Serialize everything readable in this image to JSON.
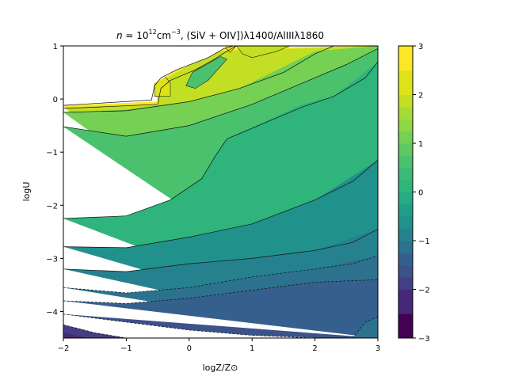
{
  "chart_data": {
    "type": "contour",
    "title": "n = 10^12 cm^-3, (SiV + OIV])λ1400/AlIIIλ1860",
    "title_parts": {
      "n": "n",
      "eq": " = 10",
      "exp": "12",
      "unit": "cm",
      "unit_exp": "−3",
      "rest": ", (SiV + OIV])λ1400/AlIIIλ1860"
    },
    "xlabel": "logZ/Z⊙",
    "ylabel": "logU",
    "xlim": [
      -2,
      3
    ],
    "ylim": [
      -4.5,
      1
    ],
    "xticks": [
      -2,
      -1,
      0,
      1,
      2,
      3
    ],
    "yticks": [
      -4,
      -3,
      -2,
      -1,
      0,
      1
    ],
    "xtick_labels": [
      "−2",
      "−1",
      "0",
      "1",
      "2",
      "3"
    ],
    "ytick_labels": [
      "−4",
      "−3",
      "−2",
      "−1",
      "0",
      "1"
    ],
    "colorbar": {
      "min": -3,
      "max": 3,
      "ticks": [
        -3,
        -2,
        -1,
        0,
        1,
        2,
        3
      ],
      "tick_labels": [
        "−3",
        "−2",
        "−1",
        "0",
        "1",
        "2",
        "3"
      ],
      "levels": [
        -3,
        -2.5,
        -2,
        -1.75,
        -1.5,
        -1.25,
        -1,
        -0.75,
        -0.5,
        -0.25,
        0,
        0.25,
        0.5,
        0.75,
        1,
        1.25,
        1.5,
        1.75,
        2,
        2.5,
        3
      ],
      "colors": [
        "#440154",
        "#472878",
        "#433e85",
        "#3b528b",
        "#35608d",
        "#2c728e",
        "#26818e",
        "#21918c",
        "#1f9e89",
        "#25ac82",
        "#2fb47c",
        "#3bbb75",
        "#4ac16d",
        "#5ec962",
        "#75d054",
        "#8fd744",
        "#a5db36",
        "#c2df23",
        "#dde318",
        "#fde725"
      ]
    },
    "grid": "off",
    "regions": [
      {
        "fill": "#fde725",
        "points": [
          [
            -2,
            -0.12
          ],
          [
            -0.5,
            -0.05
          ],
          [
            -0.6,
            0.4
          ],
          [
            0.3,
            0.95
          ],
          [
            3,
            1
          ],
          [
            3,
            -4.5
          ]
        ],
        "note": "top"
      },
      {
        "fill": "#c2df23",
        "points": [
          [
            -2,
            -0.15
          ],
          [
            -0.5,
            -0.1
          ],
          [
            -0.5,
            0.3
          ],
          [
            0.4,
            0.9
          ],
          [
            3,
            1
          ],
          [
            3,
            -4.5
          ]
        ]
      },
      {
        "fill": "#75d054",
        "points": [
          [
            -2,
            -0.25
          ],
          [
            -1,
            -0.2
          ],
          [
            0,
            -0.05
          ],
          [
            0.8,
            0.2
          ],
          [
            2,
            0.9
          ],
          [
            3,
            1
          ],
          [
            3,
            -4.5
          ]
        ]
      },
      {
        "fill": "#4ac16d",
        "points": [
          [
            -2,
            -0.52
          ],
          [
            -1,
            -0.7
          ],
          [
            0,
            -0.5
          ],
          [
            1,
            -0.1
          ],
          [
            2.5,
            0.65
          ],
          [
            3,
            0.95
          ],
          [
            3,
            -4.5
          ]
        ]
      },
      {
        "fill": "#2fb47c",
        "points": [
          [
            -2,
            -2.25
          ],
          [
            -1,
            -2.2
          ],
          [
            -0.3,
            -1.9
          ],
          [
            0.2,
            -1.5
          ],
          [
            0.4,
            -1.1
          ],
          [
            0.6,
            -0.75
          ],
          [
            1.8,
            -0.1
          ],
          [
            2.3,
            0.05
          ],
          [
            3,
            0.7
          ],
          [
            3,
            -4.5
          ]
        ]
      },
      {
        "fill": "#21918c",
        "points": [
          [
            -2,
            -2.78
          ],
          [
            -1,
            -2.8
          ],
          [
            0,
            -2.6
          ],
          [
            1,
            -2.35
          ],
          [
            2,
            -1.9
          ],
          [
            3,
            -1.15
          ],
          [
            3,
            -4.5
          ]
        ]
      },
      {
        "fill": "#26818e",
        "points": [
          [
            -2,
            -3.2
          ],
          [
            -1,
            -3.25
          ],
          [
            0,
            -3.1
          ],
          [
            1,
            -3.0
          ],
          [
            2,
            -2.85
          ],
          [
            3,
            -2.45
          ],
          [
            3,
            -4.5
          ]
        ]
      },
      {
        "fill": "#2c728e",
        "points": [
          [
            -2,
            -3.55
          ],
          [
            -1,
            -3.65
          ],
          [
            0,
            -3.55
          ],
          [
            1,
            -3.35
          ],
          [
            2,
            -3.2
          ],
          [
            3,
            -2.95
          ],
          [
            3,
            -4.5
          ]
        ]
      },
      {
        "fill": "#35608d",
        "points": [
          [
            -2,
            -3.8
          ],
          [
            -1,
            -3.85
          ],
          [
            0,
            -3.75
          ],
          [
            1,
            -3.6
          ],
          [
            2,
            -3.45
          ],
          [
            3,
            -3.4
          ],
          [
            3,
            -4.5
          ]
        ]
      },
      {
        "fill": "#3b528b",
        "points": [
          [
            -2,
            -4.05
          ],
          [
            -1,
            -4.2
          ],
          [
            0,
            -4.35
          ],
          [
            1,
            -4.45
          ],
          [
            2.2,
            -4.5
          ],
          [
            3,
            -4.5
          ]
        ]
      },
      {
        "fill": "#433e85",
        "points": [
          [
            -2,
            -4.25
          ],
          [
            -1.5,
            -4.4
          ],
          [
            -1,
            -4.5
          ],
          [
            -2,
            -4.5
          ]
        ]
      },
      {
        "fill": "#472878",
        "points": [
          [
            -2,
            -4.4
          ],
          [
            -1.6,
            -4.5
          ],
          [
            -2,
            -4.5
          ]
        ]
      },
      {
        "fill": "#2c728e",
        "points": [
          [
            2.6,
            -4.5
          ],
          [
            2.8,
            -4.2
          ],
          [
            3,
            -4.1
          ],
          [
            3,
            -4.5
          ]
        ]
      }
    ],
    "contour_lines": [
      {
        "style": "solid",
        "points": [
          [
            -2,
            -0.12
          ],
          [
            -0.6,
            -0.02
          ],
          [
            -0.55,
            0.25
          ],
          [
            -0.45,
            0.4
          ],
          [
            -0.2,
            0.55
          ],
          [
            0.3,
            0.78
          ],
          [
            0.55,
            0.95
          ],
          [
            0.7,
            1
          ]
        ]
      },
      {
        "style": "solid",
        "points": [
          [
            -2,
            -0.18
          ],
          [
            -0.5,
            -0.1
          ],
          [
            -0.45,
            0.2
          ],
          [
            -0.3,
            0.35
          ],
          [
            0.1,
            0.55
          ],
          [
            0.4,
            0.75
          ],
          [
            0.6,
            0.9
          ],
          [
            0.75,
            1
          ]
        ]
      },
      {
        "style": "solid",
        "points": [
          [
            -2,
            -0.25
          ],
          [
            -1,
            -0.22
          ],
          [
            0,
            -0.05
          ],
          [
            0.8,
            0.2
          ],
          [
            1.5,
            0.5
          ],
          [
            2,
            0.85
          ],
          [
            2.3,
            1
          ]
        ]
      },
      {
        "style": "solid",
        "points": [
          [
            -2,
            -0.52
          ],
          [
            -1,
            -0.7
          ],
          [
            0,
            -0.5
          ],
          [
            1,
            -0.1
          ],
          [
            2,
            0.4
          ],
          [
            2.5,
            0.65
          ],
          [
            3,
            0.95
          ]
        ]
      },
      {
        "style": "solid",
        "points": [
          [
            -2,
            -2.25
          ],
          [
            -1,
            -2.2
          ],
          [
            -0.3,
            -1.9
          ],
          [
            0.2,
            -1.5
          ],
          [
            0.4,
            -1.1
          ],
          [
            0.6,
            -0.75
          ],
          [
            1.2,
            -0.45
          ],
          [
            1.8,
            -0.15
          ],
          [
            2.3,
            0.05
          ],
          [
            2.8,
            0.4
          ],
          [
            3,
            0.7
          ]
        ]
      },
      {
        "style": "solid",
        "points": [
          [
            -2,
            -2.78
          ],
          [
            -1,
            -2.8
          ],
          [
            0,
            -2.6
          ],
          [
            1,
            -2.35
          ],
          [
            2,
            -1.9
          ],
          [
            2.6,
            -1.55
          ],
          [
            3,
            -1.15
          ]
        ]
      },
      {
        "style": "solid",
        "points": [
          [
            -2,
            -3.2
          ],
          [
            -1,
            -3.25
          ],
          [
            0,
            -3.1
          ],
          [
            1,
            -3.0
          ],
          [
            2,
            -2.85
          ],
          [
            2.6,
            -2.7
          ],
          [
            3,
            -2.45
          ]
        ]
      },
      {
        "style": "dashed",
        "points": [
          [
            -2,
            -3.55
          ],
          [
            -1,
            -3.65
          ],
          [
            0,
            -3.55
          ],
          [
            1,
            -3.35
          ],
          [
            2,
            -3.2
          ],
          [
            2.6,
            -3.1
          ],
          [
            3,
            -2.95
          ]
        ]
      },
      {
        "style": "dashed",
        "points": [
          [
            -2,
            -3.8
          ],
          [
            -1,
            -3.85
          ],
          [
            0,
            -3.75
          ],
          [
            1,
            -3.6
          ],
          [
            2,
            -3.45
          ],
          [
            2.6,
            -3.42
          ],
          [
            3,
            -3.4
          ]
        ]
      },
      {
        "style": "dashed",
        "points": [
          [
            -2,
            -4.05
          ],
          [
            -1,
            -4.2
          ],
          [
            0,
            -4.35
          ],
          [
            1,
            -4.45
          ],
          [
            2,
            -4.5
          ]
        ]
      },
      {
        "style": "dashed",
        "points": [
          [
            -2,
            -4.25
          ],
          [
            -1.5,
            -4.4
          ],
          [
            -1,
            -4.5
          ]
        ]
      },
      {
        "style": "dashed",
        "points": [
          [
            2.6,
            -4.5
          ],
          [
            2.8,
            -4.2
          ],
          [
            3,
            -4.1
          ]
        ]
      }
    ],
    "top_features": [
      {
        "fill": "#dde318",
        "points": [
          [
            -0.55,
            0.05
          ],
          [
            -0.55,
            0.35
          ],
          [
            -0.4,
            0.45
          ],
          [
            -0.3,
            0.3
          ],
          [
            -0.3,
            0.05
          ]
        ]
      },
      {
        "fill": "#4ac16d",
        "points": [
          [
            0.05,
            0.5
          ],
          [
            -0.05,
            0.25
          ],
          [
            0.1,
            0.2
          ],
          [
            0.3,
            0.35
          ],
          [
            0.6,
            0.75
          ],
          [
            0.5,
            0.8
          ]
        ]
      },
      {
        "fill": "#fde725",
        "points": [
          [
            0.55,
            1
          ],
          [
            0.65,
            0.88
          ],
          [
            0.75,
            1
          ]
        ]
      },
      {
        "fill": "#c2df23",
        "points": [
          [
            0.75,
            1
          ],
          [
            0.85,
            0.85
          ],
          [
            1,
            0.78
          ],
          [
            1.4,
            0.9
          ],
          [
            1.6,
            1
          ]
        ]
      },
      {
        "fill": "#ffffff",
        "points": [
          [
            -2,
            -0.1
          ],
          [
            -1.2,
            -0.08
          ],
          [
            -0.6,
            -0.02
          ],
          [
            -0.55,
            0.3
          ],
          [
            -0.2,
            0.55
          ],
          [
            0.3,
            0.78
          ],
          [
            0.55,
            0.95
          ],
          [
            0.6,
            1
          ],
          [
            -2,
            1
          ]
        ]
      }
    ]
  }
}
